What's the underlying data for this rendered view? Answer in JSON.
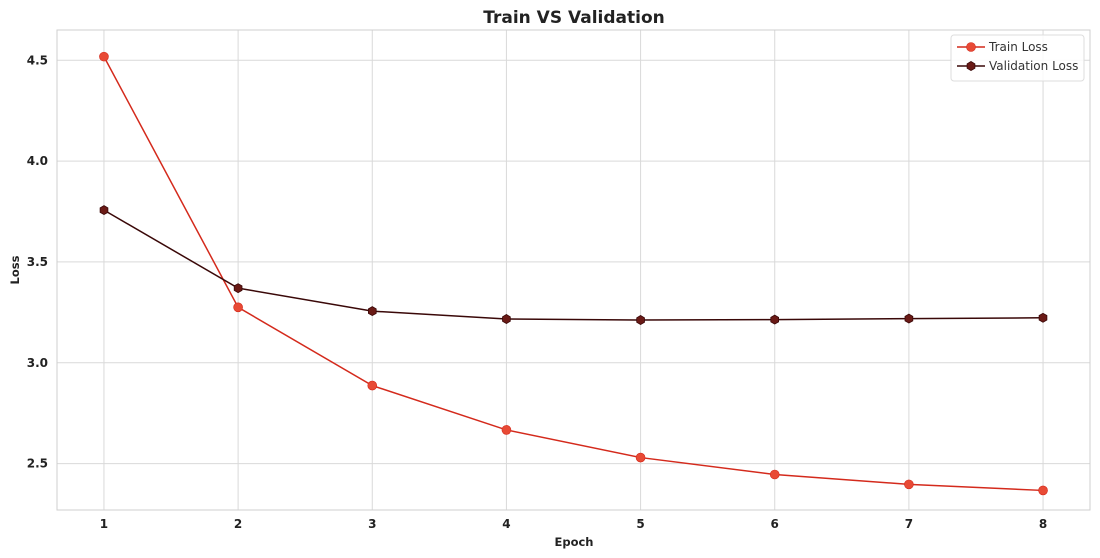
{
  "chart_data": {
    "type": "line",
    "title": "Train VS Validation",
    "xlabel": "Epoch",
    "ylabel": "Loss",
    "x": [
      1,
      2,
      3,
      4,
      5,
      6,
      7,
      8
    ],
    "xticks": [
      "1",
      "2",
      "3",
      "4",
      "5",
      "6",
      "7",
      "8"
    ],
    "yticks": [
      "2.5",
      "3.0",
      "3.5",
      "4.0",
      "4.5"
    ],
    "ytick_values": [
      2.5,
      3.0,
      3.5,
      4.0,
      4.5
    ],
    "xlim": [
      0.65,
      8.35
    ],
    "ylim": [
      2.27,
      4.65
    ],
    "grid": true,
    "legend_position": "top-right",
    "series": [
      {
        "name": "Train Loss",
        "values": [
          4.518,
          3.275,
          2.887,
          2.667,
          2.53,
          2.446,
          2.397,
          2.367
        ],
        "line_color": "#d42a1c",
        "marker_color": "#e84a35",
        "marker": "circle"
      },
      {
        "name": "Validation Loss",
        "values": [
          3.757,
          3.37,
          3.256,
          3.217,
          3.212,
          3.214,
          3.219,
          3.223
        ],
        "line_color": "#3a0808",
        "marker_color": "#6a1a16",
        "marker": "hexagon"
      }
    ]
  }
}
